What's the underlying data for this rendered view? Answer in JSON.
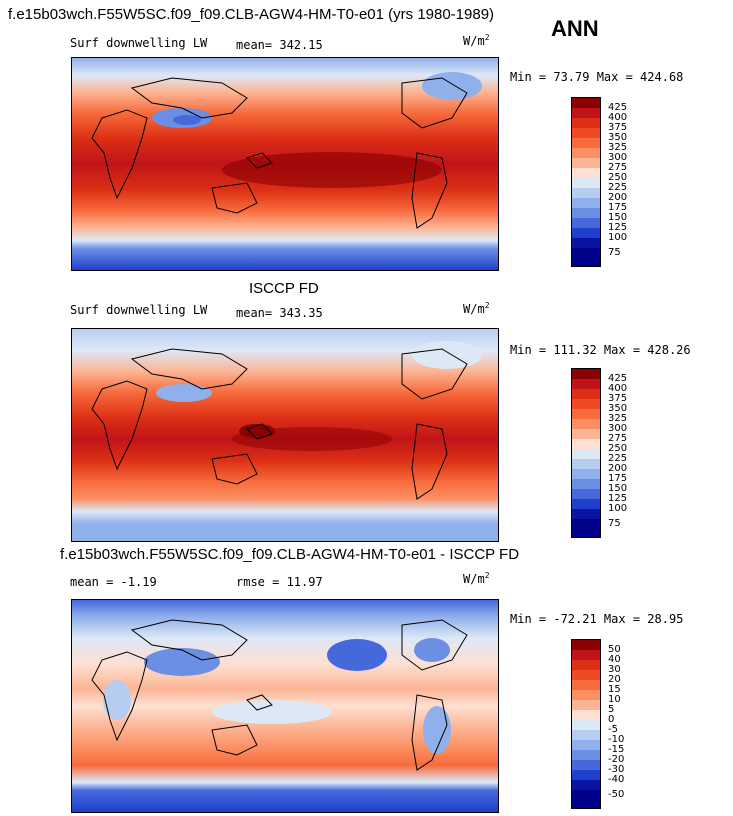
{
  "page_title": "f.e15b03wch.F55W5SC.f09_f09.CLB-AGW4-HM-T0-e01 (yrs 1980-1989)",
  "season": "ANN",
  "chart_data": [
    {
      "type": "heatmap",
      "panel": "model",
      "variable": "Surf downwelling LW",
      "mean_text": "mean= 342.15",
      "units": "W/m",
      "units_exp": "2",
      "minmax_text": "Min =  73.79 Max = 424.68",
      "min": 73.79,
      "max": 424.68,
      "levels": [
        "425",
        "400",
        "375",
        "350",
        "325",
        "300",
        "275",
        "250",
        "225",
        "200",
        "175",
        "150",
        "125",
        "100",
        "75"
      ],
      "colors": [
        "#8b0000",
        "#c0141a",
        "#dc2f14",
        "#ee4a26",
        "#f76b3c",
        "#fb8f62",
        "#fcb594",
        "#fde0d2",
        "#dde8f7",
        "#b7cdf0",
        "#8fb0ea",
        "#6a8fe3",
        "#4568db",
        "#1f3fcc",
        "#0a14a3",
        "#00008b"
      ],
      "xlabel": "",
      "ylabel": ""
    },
    {
      "type": "heatmap",
      "panel": "obs",
      "title": "ISCCP FD",
      "variable": "Surf downwelling LW",
      "mean_text": "mean= 343.35",
      "units": "W/m",
      "units_exp": "2",
      "minmax_text": "Min = 111.32 Max = 428.26",
      "min": 111.32,
      "max": 428.26,
      "levels": [
        "425",
        "400",
        "375",
        "350",
        "325",
        "300",
        "275",
        "250",
        "225",
        "200",
        "175",
        "150",
        "125",
        "100",
        "75"
      ],
      "colors": [
        "#8b0000",
        "#c0141a",
        "#dc2f14",
        "#ee4a26",
        "#f76b3c",
        "#fb8f62",
        "#fcb594",
        "#fde0d2",
        "#dde8f7",
        "#b7cdf0",
        "#8fb0ea",
        "#6a8fe3",
        "#4568db",
        "#1f3fcc",
        "#0a14a3",
        "#00008b"
      ]
    },
    {
      "type": "heatmap",
      "panel": "difference",
      "title": "f.e15b03wch.F55W5SC.f09_f09.CLB-AGW4-HM-T0-e01 - ISCCP FD",
      "mean_text": "mean =  -1.19",
      "rmse_text": "rmse =  11.97",
      "units": "W/m",
      "units_exp": "2",
      "minmax_text": "Min = -72.21 Max =  28.95",
      "min": -72.21,
      "max": 28.95,
      "levels": [
        "50",
        "40",
        "30",
        "20",
        "15",
        "10",
        "5",
        "0",
        "-5",
        "-10",
        "-15",
        "-20",
        "-30",
        "-40",
        "-50"
      ],
      "colors": [
        "#8b0000",
        "#c0141a",
        "#dc2f14",
        "#ee4a26",
        "#f76b3c",
        "#fb8f62",
        "#fcb594",
        "#fde0d2",
        "#dde8f7",
        "#b7cdf0",
        "#8fb0ea",
        "#6a8fe3",
        "#4568db",
        "#1f3fcc",
        "#0a14a3",
        "#00008b"
      ]
    }
  ]
}
